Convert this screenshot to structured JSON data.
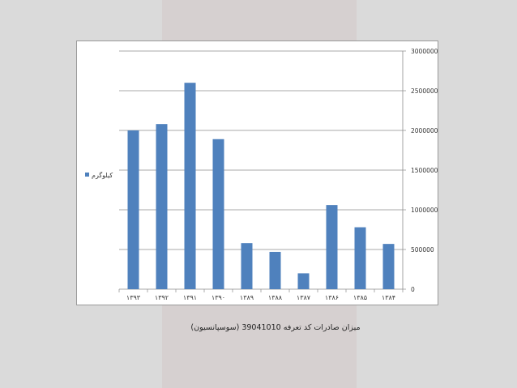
{
  "caption": "میزان صادرات کد تعرفه 39041010 (سوسپانسیون)",
  "colors": {
    "bar": "#4f81bd",
    "grid": "#8c8c8c",
    "frame": "#9a9a9a"
  },
  "chart_data": {
    "type": "bar",
    "categories": [
      "۱۳۹۳",
      "۱۳۹۲",
      "۱۳۹۱",
      "۱۳۹۰",
      "۱۳۸۹",
      "۱۳۸۸",
      "۱۳۸۷",
      "۱۳۸۶",
      "۱۳۸۵",
      "۱۳۸۴"
    ],
    "series": [
      {
        "name": "کیلوگرم",
        "values": [
          2000000,
          2080000,
          2600000,
          1890000,
          580000,
          470000,
          200000,
          1060000,
          780000,
          570000
        ]
      }
    ],
    "yticks": [
      "0",
      "500000",
      "1000000",
      "1500000",
      "2000000",
      "2500000",
      "3000000"
    ],
    "ylim": [
      0,
      3000000
    ],
    "y_axis_side": "right",
    "grid": true,
    "legend": "left"
  }
}
